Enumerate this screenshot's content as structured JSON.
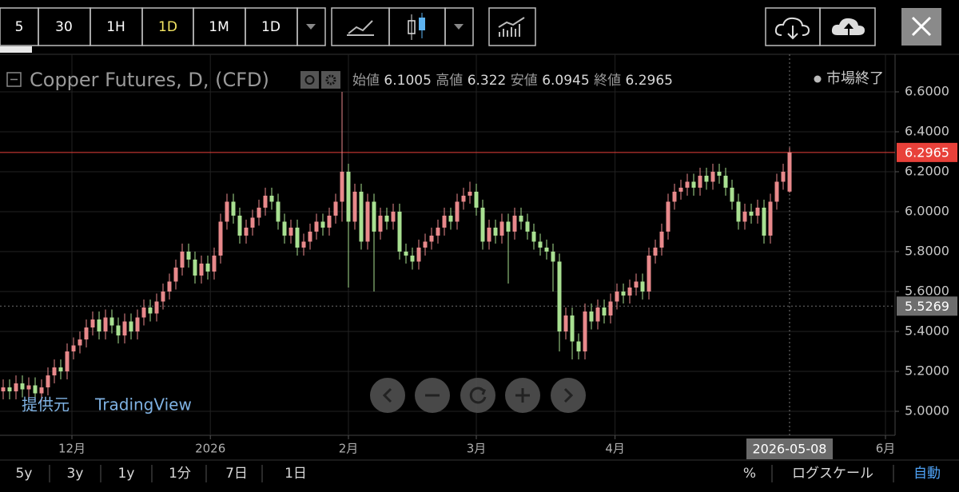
{
  "toolbar": {
    "intervals": [
      "5",
      "30",
      "1H",
      "1D",
      "1M",
      "1D"
    ]
  },
  "footer": {
    "ranges": [
      "5y",
      "3y",
      "1y",
      "1分",
      "7日",
      "1日"
    ],
    "percent": "%",
    "log_scale": "ログスケール",
    "auto": "自動"
  },
  "chart_data": {
    "type": "candlestick",
    "title": "Copper Futures, D, (CFD)",
    "ohlc_labels": [
      "始値",
      "高値",
      "安値",
      "終値"
    ],
    "status": "市場終了",
    "source_label": "提供元",
    "source": "TradingView",
    "categories": [
      null,
      null,
      null,
      null,
      null,
      null,
      null,
      null,
      null,
      null,
      null,
      null,
      null,
      null,
      null,
      null,
      null,
      null,
      null,
      null,
      null,
      null,
      null,
      null,
      null,
      null,
      null,
      null,
      null,
      null,
      null,
      null,
      null,
      null,
      null,
      null,
      null,
      null,
      null,
      null,
      null,
      null,
      null,
      null,
      null,
      null,
      null,
      null,
      null,
      null,
      null,
      null,
      null,
      null,
      null,
      null,
      null,
      null,
      null,
      null,
      null,
      null,
      null,
      null,
      null,
      null,
      null,
      null,
      null,
      null,
      null,
      null,
      null,
      null,
      null,
      null,
      null,
      null,
      null,
      null,
      null,
      null,
      null,
      null,
      null,
      null,
      null,
      null,
      null,
      null,
      null,
      null,
      null,
      null,
      null,
      null,
      null,
      null,
      null,
      null,
      null,
      null,
      null,
      null,
      null,
      null,
      null,
      null,
      null,
      null,
      null,
      null,
      null,
      null,
      null,
      null,
      null,
      null,
      null,
      null,
      null,
      null,
      null,
      null
    ],
    "open": [
      5.1,
      5.12,
      5.1,
      5.14,
      5.11,
      5.13,
      5.09,
      5.12,
      5.18,
      5.22,
      5.2,
      5.3,
      5.33,
      5.36,
      5.42,
      5.46,
      5.4,
      5.47,
      5.43,
      5.38,
      5.45,
      5.4,
      5.47,
      5.52,
      5.49,
      5.55,
      5.6,
      5.65,
      5.72,
      5.8,
      5.76,
      5.68,
      5.74,
      5.7,
      5.78,
      5.95,
      6.05,
      5.98,
      5.88,
      5.92,
      5.97,
      6.02,
      6.08,
      6.05,
      5.95,
      5.88,
      5.92,
      5.82,
      5.85,
      5.9,
      5.95,
      5.92,
      5.98,
      6.05,
      6.2,
      5.95,
      6.1,
      5.85,
      6.05,
      5.9,
      5.98,
      5.95,
      6.0,
      5.8,
      5.78,
      5.75,
      5.82,
      5.85,
      5.88,
      5.92,
      5.98,
      5.95,
      6.05,
      6.08,
      6.1,
      6.02,
      5.85,
      5.92,
      5.88,
      5.95,
      5.9,
      5.98,
      5.95,
      5.9,
      5.85,
      5.82,
      5.8,
      5.75,
      5.4,
      5.48,
      5.35,
      5.3,
      5.5,
      5.45,
      5.52,
      5.48,
      5.55,
      5.6,
      5.58,
      5.62,
      5.65,
      5.6,
      5.78,
      5.82,
      5.9,
      6.05,
      6.1,
      6.12,
      6.15,
      6.12,
      6.18,
      6.15,
      6.2,
      6.18,
      6.12,
      6.05,
      5.95,
      6.0,
      5.98,
      6.02,
      5.88,
      6.05,
      6.15,
      6.1005
    ],
    "high": [
      5.16,
      5.16,
      5.18,
      5.18,
      5.17,
      5.17,
      5.16,
      5.22,
      5.26,
      5.26,
      5.34,
      5.37,
      5.4,
      5.46,
      5.5,
      5.5,
      5.51,
      5.51,
      5.47,
      5.49,
      5.49,
      5.51,
      5.56,
      5.56,
      5.59,
      5.64,
      5.69,
      5.76,
      5.84,
      5.84,
      5.8,
      5.78,
      5.78,
      5.82,
      5.99,
      6.09,
      6.09,
      6.02,
      5.96,
      6.01,
      6.06,
      6.12,
      6.12,
      6.09,
      5.99,
      5.96,
      5.96,
      5.89,
      5.94,
      5.99,
      5.99,
      6.02,
      6.09,
      6.6,
      6.24,
      6.14,
      6.14,
      6.09,
      6.09,
      6.02,
      6.02,
      6.04,
      6.04,
      5.84,
      5.82,
      5.86,
      5.89,
      5.92,
      5.96,
      6.02,
      6.02,
      6.09,
      6.12,
      6.15,
      6.14,
      6.06,
      5.96,
      5.96,
      5.99,
      5.99,
      6.02,
      6.02,
      5.99,
      5.94,
      5.89,
      5.86,
      5.84,
      5.79,
      5.52,
      5.52,
      5.39,
      5.54,
      5.54,
      5.56,
      5.56,
      5.59,
      5.64,
      5.64,
      5.66,
      5.69,
      5.69,
      5.82,
      5.86,
      5.94,
      6.09,
      6.14,
      6.16,
      6.19,
      6.19,
      6.22,
      6.22,
      6.24,
      6.24,
      6.22,
      6.16,
      6.09,
      6.04,
      6.04,
      6.06,
      6.06,
      6.09,
      6.19,
      6.24,
      6.322
    ],
    "low": [
      5.06,
      5.06,
      5.06,
      5.07,
      5.07,
      5.05,
      5.05,
      5.08,
      5.14,
      5.16,
      5.16,
      5.26,
      5.29,
      5.32,
      5.38,
      5.36,
      5.36,
      5.39,
      5.34,
      5.34,
      5.36,
      5.36,
      5.43,
      5.45,
      5.45,
      5.51,
      5.56,
      5.61,
      5.68,
      5.72,
      5.64,
      5.64,
      5.66,
      5.66,
      5.74,
      5.91,
      5.94,
      5.84,
      5.84,
      5.88,
      5.93,
      5.98,
      6.01,
      5.91,
      5.84,
      5.84,
      5.78,
      5.78,
      5.81,
      5.86,
      5.88,
      5.88,
      5.94,
      5.95,
      5.62,
      5.91,
      5.81,
      5.81,
      5.6,
      5.86,
      5.91,
      5.91,
      5.76,
      5.74,
      5.71,
      5.71,
      5.78,
      5.81,
      5.84,
      5.88,
      5.91,
      5.91,
      6.01,
      6.04,
      5.98,
      5.81,
      5.81,
      5.84,
      5.84,
      5.64,
      5.86,
      5.91,
      5.86,
      5.81,
      5.78,
      5.76,
      5.6,
      5.3,
      5.36,
      5.26,
      5.26,
      5.26,
      5.41,
      5.41,
      5.44,
      5.44,
      5.51,
      5.54,
      5.54,
      5.58,
      5.56,
      5.56,
      5.74,
      5.78,
      5.86,
      6.01,
      6.06,
      6.08,
      6.08,
      6.08,
      6.11,
      6.11,
      6.14,
      6.08,
      6.01,
      5.91,
      5.91,
      5.94,
      5.94,
      5.84,
      5.84,
      6.01,
      6.11,
      6.0945
    ],
    "close": [
      5.12,
      5.1,
      5.14,
      5.11,
      5.13,
      5.09,
      5.12,
      5.18,
      5.22,
      5.2,
      5.3,
      5.33,
      5.36,
      5.42,
      5.46,
      5.4,
      5.47,
      5.43,
      5.38,
      5.45,
      5.4,
      5.47,
      5.52,
      5.49,
      5.55,
      5.6,
      5.65,
      5.72,
      5.8,
      5.76,
      5.68,
      5.74,
      5.7,
      5.78,
      5.95,
      6.05,
      5.98,
      5.88,
      5.92,
      5.97,
      6.02,
      6.08,
      6.05,
      5.95,
      5.88,
      5.92,
      5.82,
      5.85,
      5.9,
      5.95,
      5.92,
      5.98,
      6.05,
      6.2,
      5.95,
      6.1,
      5.85,
      6.05,
      5.9,
      5.98,
      5.95,
      6.0,
      5.8,
      5.78,
      5.75,
      5.82,
      5.85,
      5.88,
      5.92,
      5.98,
      5.95,
      6.05,
      6.08,
      6.1,
      6.02,
      5.85,
      5.92,
      5.88,
      5.95,
      5.9,
      5.98,
      5.95,
      5.9,
      5.85,
      5.82,
      5.8,
      5.75,
      5.4,
      5.48,
      5.35,
      5.3,
      5.5,
      5.45,
      5.52,
      5.48,
      5.55,
      5.6,
      5.58,
      5.62,
      5.65,
      5.6,
      5.78,
      5.82,
      5.9,
      6.05,
      6.1,
      6.12,
      6.15,
      6.12,
      6.18,
      6.15,
      6.2,
      6.18,
      6.12,
      6.05,
      5.95,
      6.0,
      5.98,
      6.02,
      5.88,
      6.05,
      6.15,
      6.2,
      6.2965
    ],
    "up_color": "#e8898b",
    "down_color": "#a8e091",
    "ylim": [
      4.88,
      6.78
    ],
    "yticks": [
      {
        "value": 5.0,
        "label": "5.0000"
      },
      {
        "value": 5.2,
        "label": "5.2000"
      },
      {
        "value": 5.4,
        "label": "5.4000"
      },
      {
        "value": 5.6,
        "label": "5.6000"
      },
      {
        "value": 5.8,
        "label": "5.8000"
      },
      {
        "value": 6.0,
        "label": "6.0000"
      },
      {
        "value": 6.2,
        "label": "6.2000"
      },
      {
        "value": 6.4,
        "label": "6.4000"
      },
      {
        "value": 6.6,
        "label": "6.6000"
      }
    ],
    "xticks": [
      {
        "value": 10.75,
        "label": "12月"
      },
      {
        "value": 32.4,
        "label": "2026"
      },
      {
        "value": 54,
        "label": "2月"
      },
      {
        "value": 74,
        "label": "3月"
      },
      {
        "value": 95.7,
        "label": "4月"
      },
      {
        "value": 138,
        "label": "6月"
      }
    ],
    "grid": true,
    "price_lines": [
      {
        "value": 6.2965,
        "color": "#e8413a"
      },
      {
        "value": 5.5269,
        "color": "#6e6e6e"
      }
    ],
    "crosshair": {
      "value": 123,
      "label": "2026-05-08"
    }
  }
}
